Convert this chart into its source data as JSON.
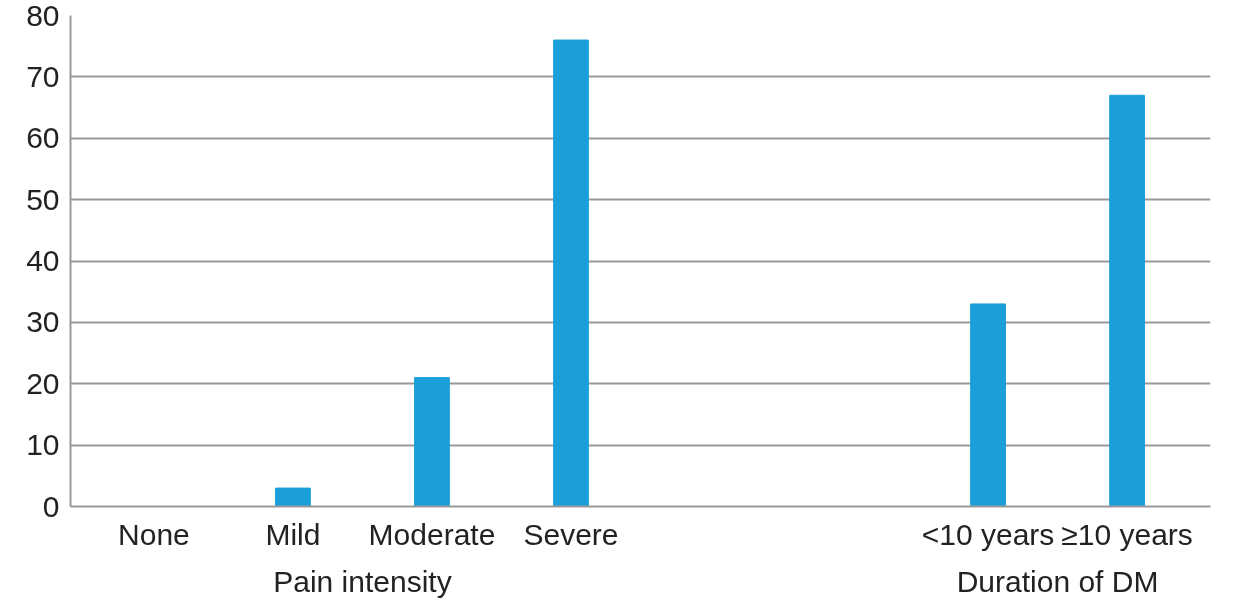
{
  "chart_data": {
    "type": "bar",
    "categories": [
      "None",
      "Mild",
      "Moderate",
      "Severe",
      null,
      null,
      "<10 years",
      "≥10 years"
    ],
    "series": [
      {
        "color": "#1a9fd9",
        "values": [
          0,
          3,
          21,
          76,
          null,
          null,
          33,
          67
        ]
      }
    ],
    "ylim": [
      0,
      80
    ],
    "yticks": [
      0,
      10,
      20,
      30,
      40,
      50,
      60,
      70,
      80
    ],
    "grid": "y",
    "annotations": [
      "Pain intensity",
      "Duration of DM"
    ]
  }
}
